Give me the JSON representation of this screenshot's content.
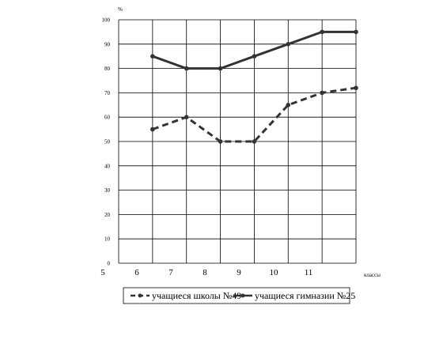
{
  "chart_data": {
    "type": "line",
    "x": [
      6,
      7,
      8,
      9,
      10,
      11,
      12
    ],
    "x_tick_labels": [
      "5",
      "6",
      "7",
      "8",
      "9",
      "10",
      "11"
    ],
    "y_ticks": [
      0,
      10,
      20,
      30,
      40,
      50,
      60,
      70,
      80,
      90,
      100
    ],
    "ylim": [
      0,
      100
    ],
    "xlabel": "классы",
    "ylabel": "%",
    "grid": true,
    "legend_position": "bottom",
    "series": [
      {
        "name": "учащиеся школы №49",
        "style": "dashed",
        "color": "#333333",
        "values": [
          55,
          60,
          50,
          50,
          65,
          70,
          72
        ]
      },
      {
        "name": "учащиеся гимназии №25",
        "style": "solid",
        "color": "#333333",
        "values": [
          85,
          80,
          80,
          85,
          90,
          95,
          95
        ]
      }
    ]
  }
}
